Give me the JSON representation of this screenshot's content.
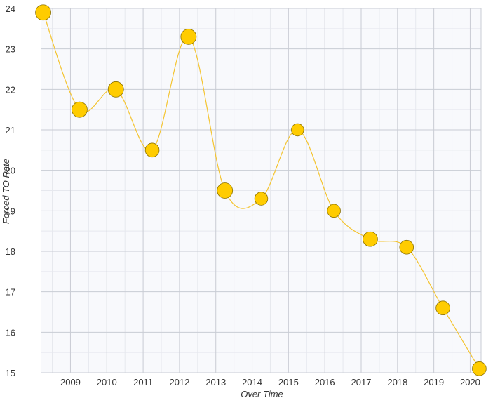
{
  "chart_data": {
    "type": "scatter",
    "title": "",
    "xlabel": "Over Time",
    "ylabel": "Forced TO Rate",
    "x_tick_labels": [
      "2009",
      "2010",
      "2011",
      "2012",
      "2013",
      "2014",
      "2015",
      "2016",
      "2017",
      "2018",
      "2019",
      "2020"
    ],
    "y_tick_labels": [
      "15",
      "16",
      "17",
      "18",
      "19",
      "20",
      "21",
      "22",
      "23",
      "24"
    ],
    "xlim": [
      2008.2,
      2020.3
    ],
    "ylim": [
      15,
      24
    ],
    "grid": true,
    "legend": "none",
    "series": [
      {
        "points": [
          {
            "x": 2008.25,
            "y": 23.9,
            "size": 1.0
          },
          {
            "x": 2009.25,
            "y": 21.5,
            "size": 1.0
          },
          {
            "x": 2010.25,
            "y": 22.0,
            "size": 1.0
          },
          {
            "x": 2011.25,
            "y": 20.5,
            "size": 0.9
          },
          {
            "x": 2012.25,
            "y": 23.3,
            "size": 1.0
          },
          {
            "x": 2013.25,
            "y": 19.5,
            "size": 1.0
          },
          {
            "x": 2014.25,
            "y": 19.3,
            "size": 0.85
          },
          {
            "x": 2015.25,
            "y": 21.0,
            "size": 0.8
          },
          {
            "x": 2016.25,
            "y": 19.0,
            "size": 0.85
          },
          {
            "x": 2017.25,
            "y": 18.3,
            "size": 0.95
          },
          {
            "x": 2018.25,
            "y": 18.1,
            "size": 0.9
          },
          {
            "x": 2019.25,
            "y": 16.6,
            "size": 0.9
          },
          {
            "x": 2020.25,
            "y": 15.1,
            "size": 0.9
          }
        ]
      }
    ],
    "colors": {
      "line": "#f4c430",
      "marker_fill": "#ffcc00",
      "marker_stroke": "#8a7000",
      "plot_background": "#f8f9fc",
      "grid_major": "#c9ccd4",
      "grid_minor": "#e6e8ee",
      "axis_text": "#333333"
    }
  }
}
